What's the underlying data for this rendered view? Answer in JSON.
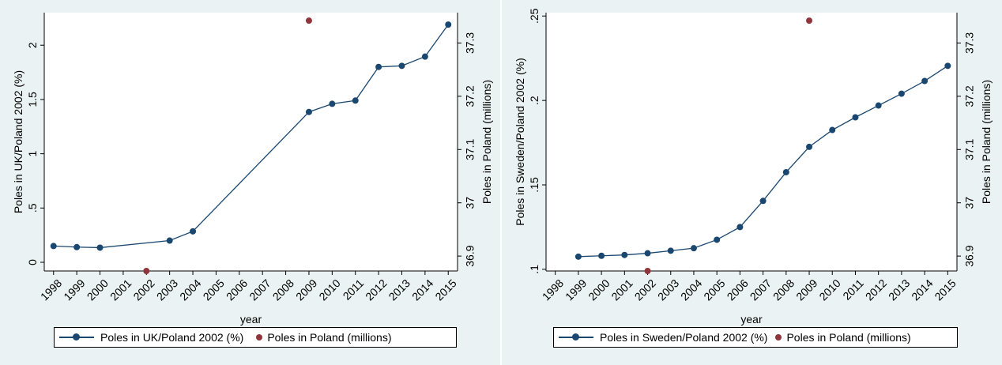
{
  "colors": {
    "panel_bg": "#eaf2f3",
    "series_line": "#1a476f",
    "series_dot": "#90353b"
  },
  "chart_data": [
    {
      "type": "line",
      "xlabel": "year",
      "ylabel_left": "Poles in UK/Poland 2002 (%)",
      "ylabel_right": "Poles in Poland (millions)",
      "x_ticks": [
        "1998",
        "1999",
        "2000",
        "2001",
        "2002",
        "2003",
        "2004",
        "2005",
        "2006",
        "2007",
        "2008",
        "2009",
        "2010",
        "2011",
        "2012",
        "2013",
        "2014",
        "2015"
      ],
      "y_left_ticks": [
        "0",
        ".5",
        "1",
        "1.5",
        "2"
      ],
      "y_right_ticks": [
        "36.9",
        "37",
        "37.1",
        "37.2",
        "37.3"
      ],
      "ylim_left": [
        -0.08,
        2.3
      ],
      "ylim_right": [
        36.872,
        37.357
      ],
      "xlim": [
        1997.6,
        2015.4
      ],
      "grid": false,
      "legend_placement": "bottom",
      "series": [
        {
          "name": "Poles in UK/Poland 2002 (%)",
          "axis": "left",
          "style": "line-markers",
          "x": [
            1998,
            1999,
            2000,
            2003,
            2004,
            2009,
            2010,
            2011,
            2012,
            2013,
            2014,
            2015
          ],
          "y": [
            0.15,
            0.14,
            0.135,
            0.2,
            0.285,
            1.385,
            1.46,
            1.49,
            1.8,
            1.81,
            1.895,
            2.19
          ]
        },
        {
          "name": "Poles in Poland (millions)",
          "axis": "right",
          "style": "points",
          "x": [
            2002,
            2009
          ],
          "y": [
            36.872,
            37.342
          ]
        }
      ]
    },
    {
      "type": "line",
      "xlabel": "year",
      "ylabel_left": "Poles in Sweden/Poland 2002 (%)",
      "ylabel_right": "Poles in Poland (millions)",
      "x_ticks": [
        "1998",
        "1999",
        "2000",
        "2001",
        "2002",
        "2003",
        "2004",
        "2005",
        "2006",
        "2007",
        "2008",
        "2009",
        "2010",
        "2011",
        "2012",
        "2013",
        "2014",
        "2015"
      ],
      "y_left_ticks": [
        ".1",
        ".15",
        ".2",
        ".25"
      ],
      "y_right_ticks": [
        "36.9",
        "37",
        "37.1",
        "37.2",
        "37.3"
      ],
      "ylim_left": [
        0.099,
        0.252
      ],
      "ylim_right": [
        36.872,
        37.357
      ],
      "xlim": [
        1997.6,
        2015.4
      ],
      "grid": false,
      "legend_placement": "bottom",
      "series": [
        {
          "name": "Poles in Sweden/Poland 2002 (%)",
          "axis": "left",
          "style": "line-markers",
          "x": [
            1999,
            2000,
            2001,
            2002,
            2003,
            2004,
            2005,
            2006,
            2007,
            2008,
            2009,
            2010,
            2011,
            2012,
            2013,
            2014,
            2015
          ],
          "y": [
            0.1075,
            0.108,
            0.1085,
            0.1095,
            0.111,
            0.1125,
            0.1175,
            0.125,
            0.1405,
            0.1575,
            0.1725,
            0.1825,
            0.19,
            0.197,
            0.204,
            0.2115,
            0.2205
          ]
        },
        {
          "name": "Poles in Poland (millions)",
          "axis": "right",
          "style": "points",
          "x": [
            2002,
            2009
          ],
          "y": [
            36.872,
            37.342
          ]
        }
      ]
    }
  ]
}
